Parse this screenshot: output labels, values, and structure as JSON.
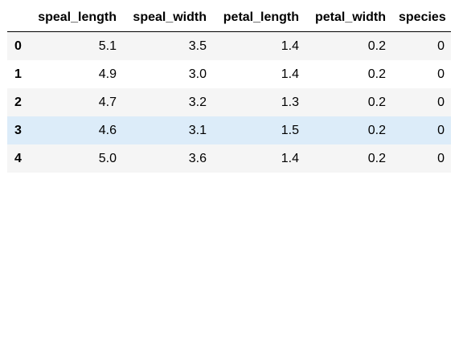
{
  "table": {
    "columns": [
      "",
      "speal_length",
      "speal_width",
      "petal_length",
      "petal_width",
      "species"
    ],
    "rows": [
      {
        "index": "0",
        "cells": [
          "5.1",
          "3.5",
          "1.4",
          "0.2",
          "0"
        ]
      },
      {
        "index": "1",
        "cells": [
          "4.9",
          "3.0",
          "1.4",
          "0.2",
          "0"
        ]
      },
      {
        "index": "2",
        "cells": [
          "4.7",
          "3.2",
          "1.3",
          "0.2",
          "0"
        ]
      },
      {
        "index": "3",
        "cells": [
          "4.6",
          "3.1",
          "1.5",
          "0.2",
          "0"
        ]
      },
      {
        "index": "4",
        "cells": [
          "5.0",
          "3.6",
          "1.4",
          "0.2",
          "0"
        ]
      }
    ],
    "highlighted_row": "3",
    "colors": {
      "stripe": "#f5f5f5",
      "hover": "#dcecf9",
      "header_rule": "#000000"
    }
  }
}
